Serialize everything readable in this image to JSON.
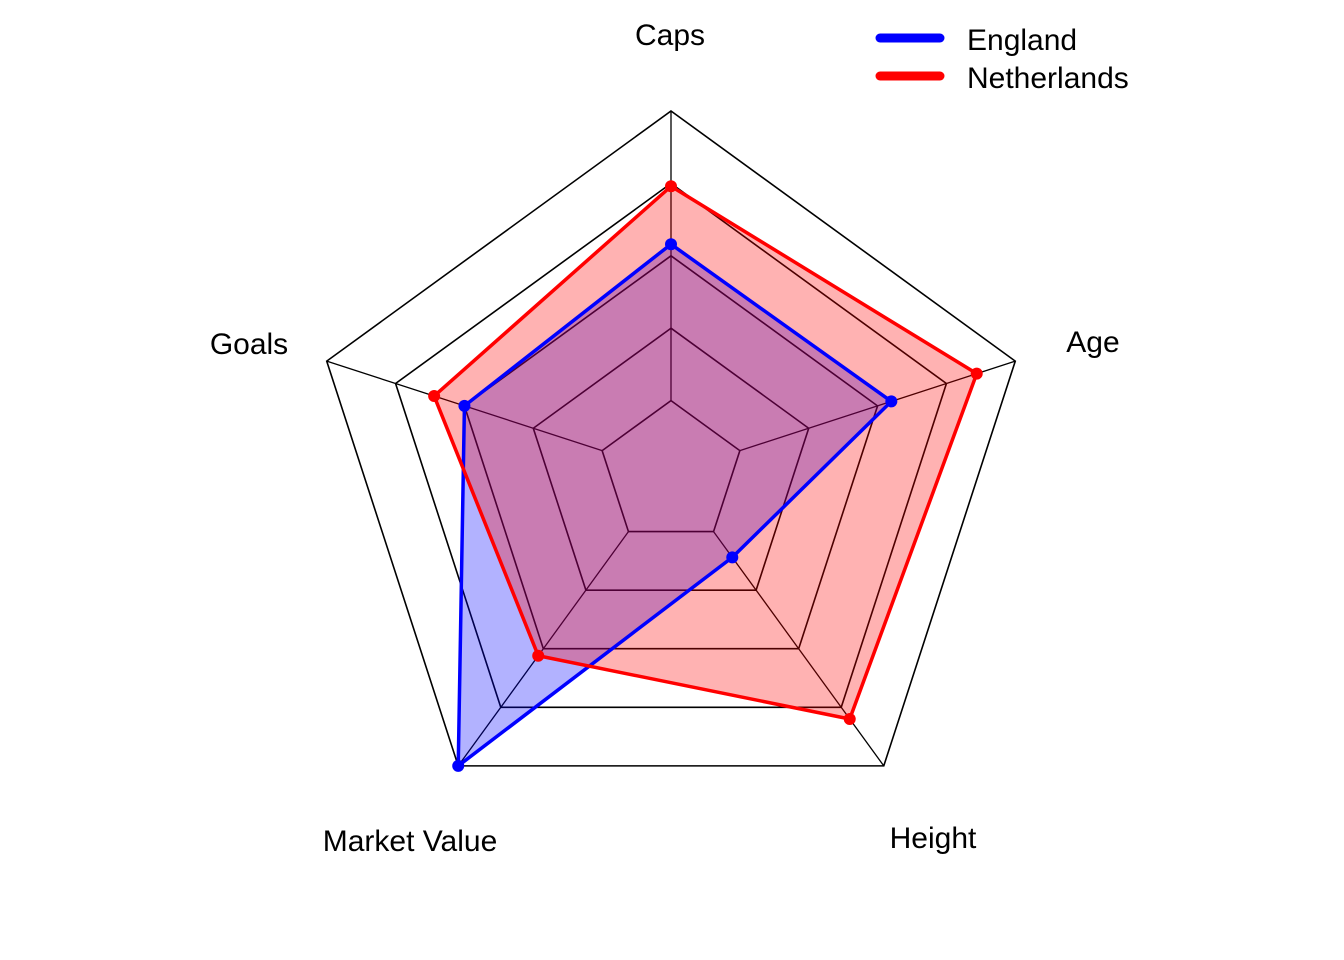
{
  "chart_data": {
    "type": "radar",
    "axes": [
      "Caps",
      "Age",
      "Height",
      "Market Value",
      "Goals"
    ],
    "range": [
      0,
      1
    ],
    "grid_levels": 5,
    "series": [
      {
        "name": "England",
        "color": "#0000FF",
        "fill": "rgba(0,0,255,0.3)",
        "values": [
          0.54,
          0.55,
          0.11,
          1.0,
          0.5
        ]
      },
      {
        "name": "Netherlands",
        "color": "#FF0000",
        "fill": "rgba(255,0,0,0.3)",
        "values": [
          0.74,
          0.86,
          0.8,
          0.53,
          0.61
        ]
      }
    ],
    "legend": {
      "position": "top-right",
      "entries": [
        "England",
        "Netherlands"
      ]
    }
  }
}
